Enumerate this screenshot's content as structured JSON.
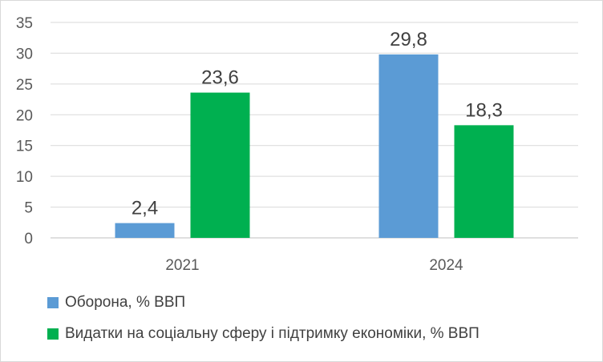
{
  "chart_data": {
    "type": "bar",
    "categories": [
      "2021",
      "2024"
    ],
    "series": [
      {
        "name": "Оборона, % ВВП",
        "values": [
          2.4,
          29.8
        ],
        "labels": [
          "2,4",
          "29,8"
        ],
        "color": "#5b9bd5"
      },
      {
        "name": "Видатки на соціальну сферу і підтримку економіки, % ВВП",
        "values": [
          23.6,
          18.3
        ],
        "labels": [
          "23,6",
          "18,3"
        ],
        "color": "#00b050"
      }
    ],
    "yticks": [
      "0",
      "5",
      "10",
      "15",
      "20",
      "25",
      "30",
      "35"
    ],
    "ylim": [
      0,
      35
    ],
    "grid": true,
    "legend_position": "bottom-left"
  }
}
